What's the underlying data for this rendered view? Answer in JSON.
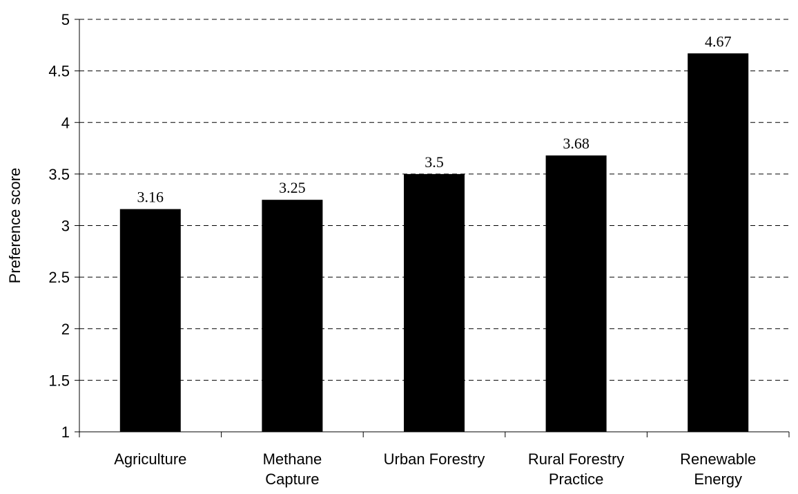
{
  "chart_data": {
    "type": "bar",
    "categories": [
      [
        "Agriculture"
      ],
      [
        "Methane",
        "Capture"
      ],
      [
        "Urban Forestry"
      ],
      [
        "Rural Forestry",
        "Practice"
      ],
      [
        "Renewable",
        "Energy"
      ]
    ],
    "values": [
      3.16,
      3.25,
      3.5,
      3.68,
      4.67
    ],
    "data_labels": [
      "3.16",
      "3.25",
      "3.5",
      "3.68",
      "4.67"
    ],
    "xlabel": "",
    "ylabel": "Preference score",
    "ylim": [
      1,
      5
    ],
    "yticks": [
      1,
      1.5,
      2,
      2.5,
      3,
      3.5,
      4,
      4.5,
      5
    ],
    "ytick_labels": [
      "1",
      "1.5",
      "2",
      "2.5",
      "3",
      "3.5",
      "4",
      "4.5",
      "5"
    ],
    "grid": "horizontal dashed",
    "legend": "none",
    "bar_color": "#000000"
  }
}
